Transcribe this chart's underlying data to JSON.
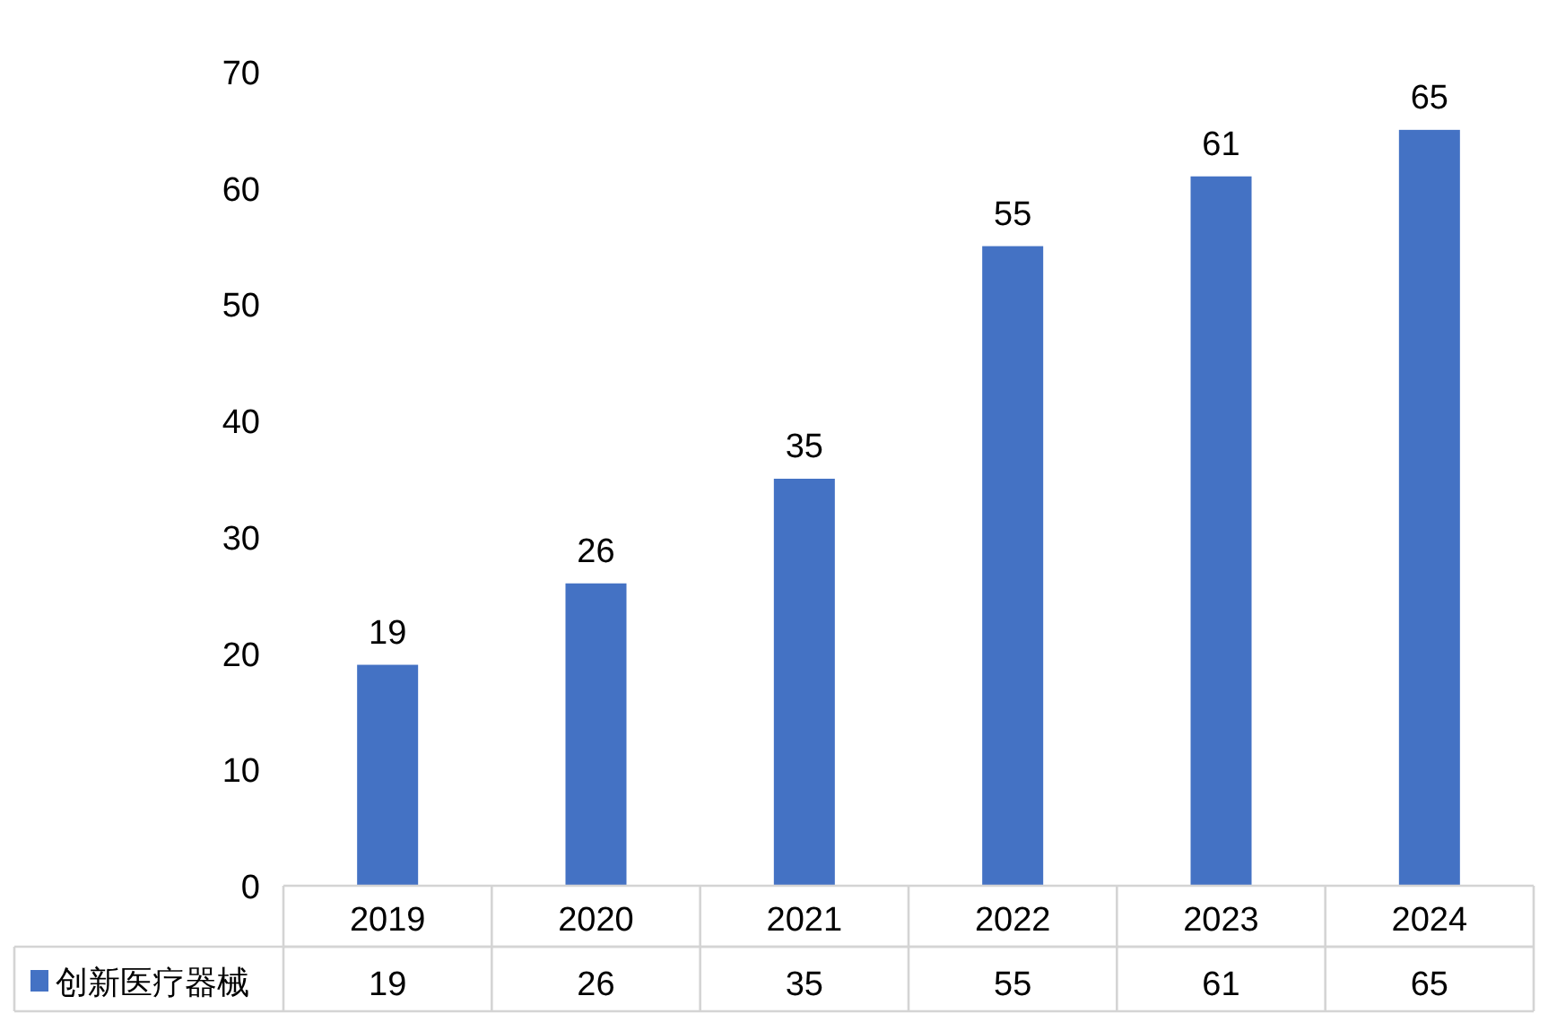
{
  "chart_data": {
    "type": "bar",
    "categories": [
      "2019",
      "2020",
      "2021",
      "2022",
      "2023",
      "2024"
    ],
    "series": [
      {
        "name": "创新医疗器械",
        "color": "#4472c4",
        "values": [
          19,
          26,
          35,
          55,
          61,
          65
        ]
      }
    ],
    "ylim": [
      0,
      70
    ],
    "yticks": [
      0,
      10,
      20,
      30,
      40,
      50,
      60,
      70
    ],
    "data_labels": true,
    "legend": "bottom left",
    "annotations": [
      "19",
      "26",
      "35",
      "55",
      "61",
      "65"
    ]
  }
}
